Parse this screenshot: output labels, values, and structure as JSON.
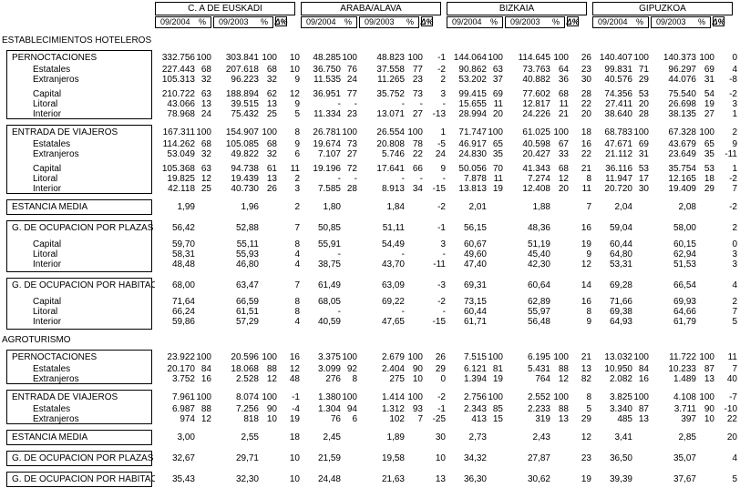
{
  "header": {
    "regions": [
      "C. A DE EUSKADI",
      "ARABA/ALAVA",
      "BIZKAIA",
      "GIPUZKOA"
    ],
    "subcolumns": {
      "period_current": "09/2004",
      "pct": "%",
      "period_previous": "09/2003",
      "pct2": "%",
      "delta": "Δ%"
    }
  },
  "sections": [
    {
      "title": "ESTABLECIMIENTOS HOTELEROS",
      "blocks": [
        {
          "rows": [
            {
              "type": "head",
              "label": "PERNOCTACIONES",
              "cells": [
                "332.756",
                "100",
                "303.841",
                "100",
                "10",
                "48.285",
                "100",
                "48.823",
                "100",
                "-1",
                "144.064",
                "100",
                "114.645",
                "100",
                "26",
                "140.407",
                "100",
                "140.373",
                "100",
                "0"
              ]
            },
            {
              "type": "sub",
              "label": "Estatales",
              "cells": [
                "227.443",
                "68",
                "207.618",
                "68",
                "10",
                "36.750",
                "76",
                "37.558",
                "77",
                "-2",
                "90.862",
                "63",
                "73.763",
                "64",
                "23",
                "99.831",
                "71",
                "96.297",
                "69",
                "4"
              ]
            },
            {
              "type": "sub",
              "label": "Extranjeros",
              "cells": [
                "105.313",
                "32",
                "96.223",
                "32",
                "9",
                "11.535",
                "24",
                "11.265",
                "23",
                "2",
                "53.202",
                "37",
                "40.882",
                "36",
                "30",
                "40.576",
                "29",
                "44.076",
                "31",
                "-8"
              ]
            },
            {
              "type": "spacer"
            },
            {
              "type": "sub",
              "label": "Capital",
              "cells": [
                "210.722",
                "63",
                "188.894",
                "62",
                "12",
                "36.951",
                "77",
                "35.752",
                "73",
                "3",
                "99.415",
                "69",
                "77.602",
                "68",
                "28",
                "74.356",
                "53",
                "75.540",
                "54",
                "-2"
              ]
            },
            {
              "type": "sub",
              "label": "Litoral",
              "cells": [
                "43.066",
                "13",
                "39.515",
                "13",
                "9",
                "-",
                "-",
                "-",
                "-",
                "-",
                "15.655",
                "11",
                "12.817",
                "11",
                "22",
                "27.411",
                "20",
                "26.698",
                "19",
                "3"
              ]
            },
            {
              "type": "sub",
              "label": "Interior",
              "cells": [
                "78.968",
                "24",
                "75.432",
                "25",
                "5",
                "11.334",
                "23",
                "13.071",
                "27",
                "-13",
                "28.994",
                "20",
                "24.226",
                "21",
                "20",
                "38.640",
                "28",
                "38.135",
                "27",
                "1"
              ]
            }
          ]
        },
        {
          "rows": [
            {
              "type": "head",
              "label": "ENTRADA DE VIAJEROS",
              "cells": [
                "167.311",
                "100",
                "154.907",
                "100",
                "8",
                "26.781",
                "100",
                "26.554",
                "100",
                "1",
                "71.747",
                "100",
                "61.025",
                "100",
                "18",
                "68.783",
                "100",
                "67.328",
                "100",
                "2"
              ]
            },
            {
              "type": "sub",
              "label": "Estatales",
              "cells": [
                "114.262",
                "68",
                "105.085",
                "68",
                "9",
                "19.674",
                "73",
                "20.808",
                "78",
                "-5",
                "46.917",
                "65",
                "40.598",
                "67",
                "16",
                "47.671",
                "69",
                "43.679",
                "65",
                "9"
              ]
            },
            {
              "type": "sub",
              "label": "Extranjeros",
              "cells": [
                "53.049",
                "32",
                "49.822",
                "32",
                "6",
                "7.107",
                "27",
                "5.746",
                "22",
                "24",
                "24.830",
                "35",
                "20.427",
                "33",
                "22",
                "21.112",
                "31",
                "23.649",
                "35",
                "-11"
              ]
            },
            {
              "type": "spacer"
            },
            {
              "type": "sub",
              "label": "Capital",
              "cells": [
                "105.368",
                "63",
                "94.738",
                "61",
                "11",
                "19.196",
                "72",
                "17.641",
                "66",
                "9",
                "50.056",
                "70",
                "41.343",
                "68",
                "21",
                "36.116",
                "53",
                "35.754",
                "53",
                "1"
              ]
            },
            {
              "type": "sub",
              "label": "Litoral",
              "cells": [
                "19.825",
                "12",
                "19.439",
                "13",
                "2",
                "-",
                "-",
                "-",
                "-",
                "-",
                "7.878",
                "11",
                "7.274",
                "12",
                "8",
                "11.947",
                "17",
                "12.165",
                "18",
                "-2"
              ]
            },
            {
              "type": "sub",
              "label": "Interior",
              "cells": [
                "42.118",
                "25",
                "40.730",
                "26",
                "3",
                "7.585",
                "28",
                "8.913",
                "34",
                "-15",
                "13.813",
                "19",
                "12.408",
                "20",
                "11",
                "20.720",
                "30",
                "19.409",
                "29",
                "7"
              ]
            }
          ]
        },
        {
          "rows": [
            {
              "type": "single",
              "label": "ESTANCIA MEDIA",
              "cells": [
                "1,99",
                "",
                "1,96",
                "",
                "2",
                "1,80",
                "",
                "1,84",
                "",
                "-2",
                "2,01",
                "",
                "1,88",
                "",
                "7",
                "2,04",
                "",
                "2,08",
                "",
                "-2"
              ]
            }
          ]
        },
        {
          "rows": [
            {
              "type": "head",
              "label": "G. DE OCUPACIÓN POR PLAZAS",
              "cells": [
                "56,42",
                "",
                "52,88",
                "",
                "7",
                "50,85",
                "",
                "51,11",
                "",
                "-1",
                "56,15",
                "",
                "48,36",
                "",
                "16",
                "59,04",
                "",
                "58,00",
                "",
                "2"
              ]
            },
            {
              "type": "spacer"
            },
            {
              "type": "sub",
              "label": "Capital",
              "cells": [
                "59,70",
                "",
                "55,11",
                "",
                "8",
                "55,91",
                "",
                "54,49",
                "",
                "3",
                "60,67",
                "",
                "51,19",
                "",
                "19",
                "60,44",
                "",
                "60,15",
                "",
                "0"
              ]
            },
            {
              "type": "sub",
              "label": "Litoral",
              "cells": [
                "58,31",
                "",
                "55,93",
                "",
                "4",
                "-",
                "",
                "-",
                "",
                "-",
                "49,60",
                "",
                "45,40",
                "",
                "9",
                "64,80",
                "",
                "62,94",
                "",
                "3"
              ]
            },
            {
              "type": "sub",
              "label": "Interior",
              "cells": [
                "48,48",
                "",
                "46,80",
                "",
                "4",
                "38,75",
                "",
                "43,70",
                "",
                "-11",
                "47,40",
                "",
                "42,30",
                "",
                "12",
                "53,31",
                "",
                "51,53",
                "",
                "3"
              ]
            },
            {
              "type": "pad"
            }
          ]
        },
        {
          "rows": [
            {
              "type": "head",
              "label": "G. DE OCUPACIÓN POR HABITACIONES",
              "cells": [
                "68,00",
                "",
                "63,47",
                "",
                "7",
                "61,49",
                "",
                "63,09",
                "",
                "-3",
                "69,31",
                "",
                "60,64",
                "",
                "14",
                "69,28",
                "",
                "66,54",
                "",
                "4"
              ]
            },
            {
              "type": "spacer"
            },
            {
              "type": "sub",
              "label": "Capital",
              "cells": [
                "71,64",
                "",
                "66,59",
                "",
                "8",
                "68,05",
                "",
                "69,22",
                "",
                "-2",
                "73,15",
                "",
                "62,89",
                "",
                "16",
                "71,66",
                "",
                "69,93",
                "",
                "2"
              ]
            },
            {
              "type": "sub",
              "label": "Litoral",
              "cells": [
                "66,24",
                "",
                "61,51",
                "",
                "8",
                "-",
                "",
                "-",
                "",
                "-",
                "60,44",
                "",
                "55,97",
                "",
                "8",
                "69,38",
                "",
                "64,66",
                "",
                "7"
              ]
            },
            {
              "type": "sub",
              "label": "Interior",
              "cells": [
                "59,86",
                "",
                "57,29",
                "",
                "4",
                "40,59",
                "",
                "47,65",
                "",
                "-15",
                "61,71",
                "",
                "56,48",
                "",
                "9",
                "64,93",
                "",
                "61,79",
                "",
                "5"
              ]
            },
            {
              "type": "pad"
            }
          ]
        }
      ]
    },
    {
      "title": "AGROTURISMO",
      "blocks": [
        {
          "rows": [
            {
              "type": "head",
              "label": "PERNOCTACIONES",
              "cells": [
                "23.922",
                "100",
                "20.596",
                "100",
                "16",
                "3.375",
                "100",
                "2.679",
                "100",
                "26",
                "7.515",
                "100",
                "6.195",
                "100",
                "21",
                "13.032",
                "100",
                "11.722",
                "100",
                "11"
              ]
            },
            {
              "type": "sub",
              "label": "Estatales",
              "cells": [
                "20.170",
                "84",
                "18.068",
                "88",
                "12",
                "3.099",
                "92",
                "2.404",
                "90",
                "29",
                "6.121",
                "81",
                "5.431",
                "88",
                "13",
                "10.950",
                "84",
                "10.233",
                "87",
                "7"
              ]
            },
            {
              "type": "sub",
              "label": "Extranjeros",
              "cells": [
                "3.752",
                "16",
                "2.528",
                "12",
                "48",
                "276",
                "8",
                "275",
                "10",
                "0",
                "1.394",
                "19",
                "764",
                "12",
                "82",
                "2.082",
                "16",
                "1.489",
                "13",
                "40"
              ]
            }
          ]
        },
        {
          "rows": [
            {
              "type": "head",
              "label": "ENTRADA DE VIAJEROS",
              "cells": [
                "7.961",
                "100",
                "8.074",
                "100",
                "-1",
                "1.380",
                "100",
                "1.414",
                "100",
                "-2",
                "2.756",
                "100",
                "2.552",
                "100",
                "8",
                "3.825",
                "100",
                "4.108",
                "100",
                "-7"
              ]
            },
            {
              "type": "sub",
              "label": "Estatales",
              "cells": [
                "6.987",
                "88",
                "7.256",
                "90",
                "-4",
                "1.304",
                "94",
                "1.312",
                "93",
                "-1",
                "2.343",
                "85",
                "2.233",
                "88",
                "5",
                "3.340",
                "87",
                "3.711",
                "90",
                "-10"
              ]
            },
            {
              "type": "sub",
              "label": "Extranjeros",
              "cells": [
                "974",
                "12",
                "818",
                "10",
                "19",
                "76",
                "6",
                "102",
                "7",
                "-25",
                "413",
                "15",
                "319",
                "13",
                "29",
                "485",
                "13",
                "397",
                "10",
                "22"
              ]
            }
          ]
        },
        {
          "rows": [
            {
              "type": "single",
              "label": "ESTANCIA MEDIA",
              "cells": [
                "3,00",
                "",
                "2,55",
                "",
                "18",
                "2,45",
                "",
                "1,89",
                "",
                "30",
                "2,73",
                "",
                "2,43",
                "",
                "12",
                "3,41",
                "",
                "2,85",
                "",
                "20"
              ]
            }
          ]
        },
        {
          "rows": [
            {
              "type": "single",
              "label": "G. DE OCUPACIÓN POR PLAZAS",
              "cells": [
                "32,67",
                "",
                "29,71",
                "",
                "10",
                "21,59",
                "",
                "19,58",
                "",
                "10",
                "34,32",
                "",
                "27,87",
                "",
                "23",
                "36,50",
                "",
                "35,07",
                "",
                "4"
              ]
            }
          ]
        },
        {
          "rows": [
            {
              "type": "single",
              "label": "G. DE OCUPACIÓN POR HABITACIONES",
              "cells": [
                "35,43",
                "",
                "32,30",
                "",
                "10",
                "24,48",
                "",
                "21,63",
                "",
                "13",
                "36,30",
                "",
                "30,62",
                "",
                "19",
                "39,39",
                "",
                "37,67",
                "",
                "5"
              ]
            }
          ]
        }
      ]
    }
  ]
}
